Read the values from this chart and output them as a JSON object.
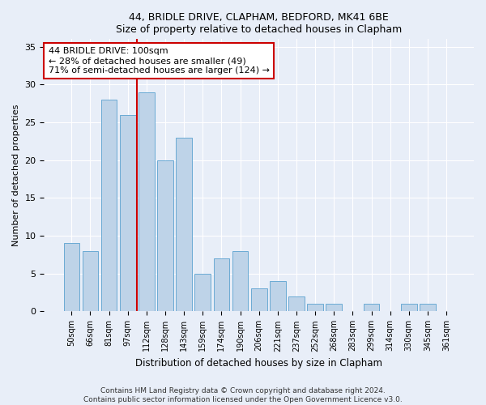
{
  "title1": "44, BRIDLE DRIVE, CLAPHAM, BEDFORD, MK41 6BE",
  "title2": "Size of property relative to detached houses in Clapham",
  "xlabel": "Distribution of detached houses by size in Clapham",
  "ylabel": "Number of detached properties",
  "categories": [
    "50sqm",
    "66sqm",
    "81sqm",
    "97sqm",
    "112sqm",
    "128sqm",
    "143sqm",
    "159sqm",
    "174sqm",
    "190sqm",
    "206sqm",
    "221sqm",
    "237sqm",
    "252sqm",
    "268sqm",
    "283sqm",
    "299sqm",
    "314sqm",
    "330sqm",
    "345sqm",
    "361sqm"
  ],
  "values": [
    9,
    8,
    28,
    26,
    29,
    20,
    23,
    5,
    7,
    8,
    3,
    4,
    2,
    1,
    1,
    0,
    1,
    0,
    1,
    1,
    0
  ],
  "bar_color": "#bed3e8",
  "bar_edge_color": "#6aaad4",
  "vline_color": "#cc0000",
  "vline_pos": 3.5,
  "annotation_text": "44 BRIDLE DRIVE: 100sqm\n← 28% of detached houses are smaller (49)\n71% of semi-detached houses are larger (124) →",
  "annotation_box_color": "white",
  "annotation_box_edge": "#cc0000",
  "ylim": [
    0,
    36
  ],
  "yticks": [
    0,
    5,
    10,
    15,
    20,
    25,
    30,
    35
  ],
  "footer1": "Contains HM Land Registry data © Crown copyright and database right 2024.",
  "footer2": "Contains public sector information licensed under the Open Government Licence v3.0.",
  "bg_color": "#e8eef8",
  "plot_bg_color": "#e8eef8"
}
